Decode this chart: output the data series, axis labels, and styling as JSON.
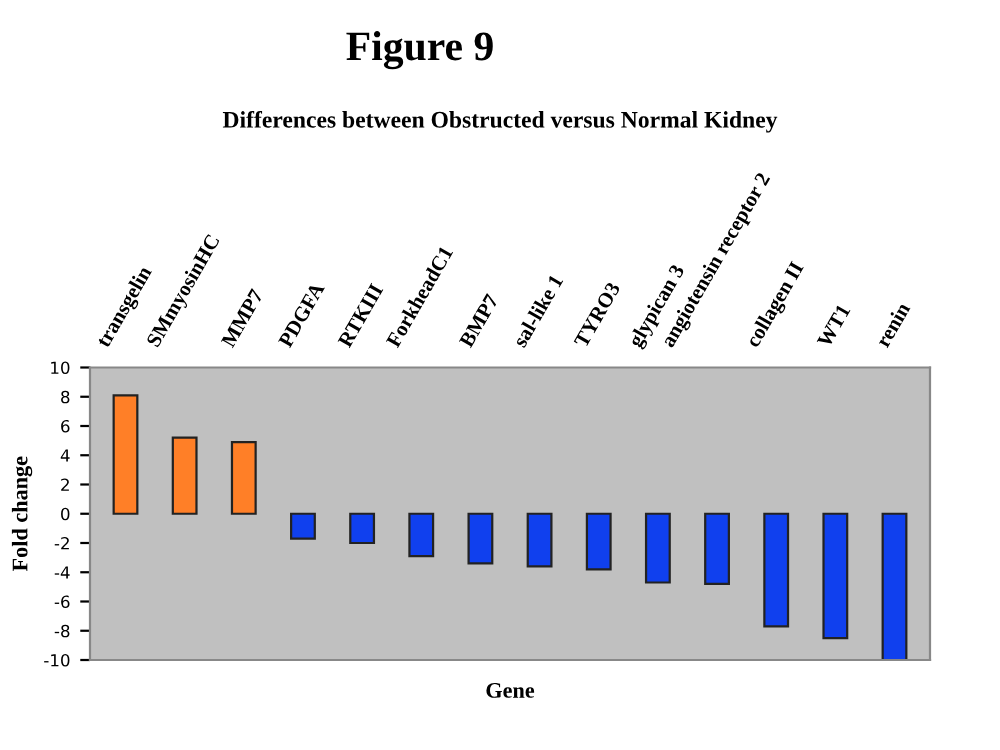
{
  "chart_data": {
    "type": "bar",
    "title": "Figure 9",
    "subtitle": "Differences between Obstructed versus Normal Kidney",
    "xlabel": "Gene",
    "ylabel": "Fold change",
    "categories": [
      "transgelin",
      "SMmyosinHC",
      "MMP7",
      "PDGFA",
      "RTKIII",
      "ForkheadC1",
      "BMP7",
      "sal-like 1",
      "TYRO3",
      "glypican 3",
      "angiotensin receptor 2",
      "collagen II",
      "WT1",
      "renin"
    ],
    "values": [
      8.1,
      5.2,
      4.9,
      -1.7,
      -2.0,
      -2.9,
      -3.4,
      -3.6,
      -3.8,
      -4.7,
      -4.8,
      -7.7,
      -8.5,
      -10
    ],
    "colors": [
      "#ff7f27",
      "#ff7f27",
      "#ff7f27",
      "#1040ee",
      "#1040ee",
      "#1040ee",
      "#1040ee",
      "#1040ee",
      "#1040ee",
      "#1040ee",
      "#1040ee",
      "#1040ee",
      "#1040ee",
      "#1040ee"
    ],
    "ylim": [
      -10,
      10
    ],
    "yticks": [
      -10,
      -8,
      -6,
      -4,
      -2,
      0,
      2,
      4,
      6,
      8,
      10
    ],
    "grid": false,
    "legend": false
  }
}
